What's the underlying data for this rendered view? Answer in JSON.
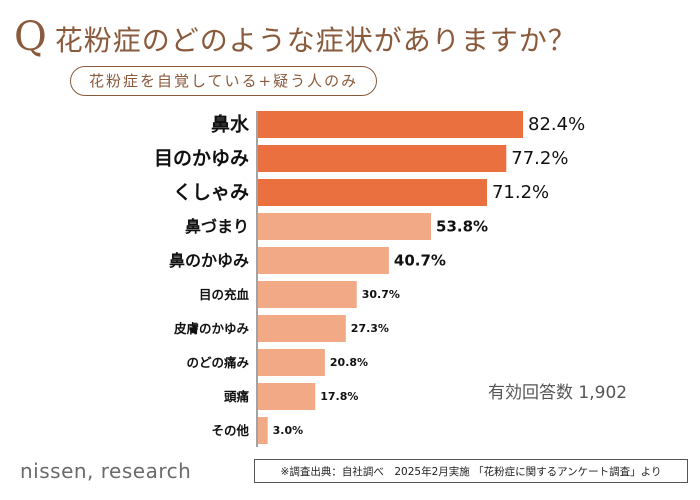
{
  "title": {
    "q_mark": "Q",
    "question": "花粉症のどのような症状がありますか？",
    "subtitle": "花粉症を自覚している+疑う人のみ"
  },
  "chart_data": {
    "type": "bar",
    "orientation": "horizontal",
    "categories": [
      "鼻水",
      "目のかゆみ",
      "くしゃみ",
      "鼻づまり",
      "鼻のかゆみ",
      "目の充血",
      "皮膚のかゆみ",
      "のどの痛み",
      "頭痛",
      "その他"
    ],
    "values": [
      82.4,
      77.2,
      71.2,
      53.8,
      40.7,
      30.7,
      27.3,
      20.8,
      17.8,
      3.0
    ],
    "value_labels": [
      "82.4%",
      "77.2%",
      "71.2%",
      "53.8%",
      "40.7%",
      "30.7%",
      "27.3%",
      "20.8%",
      "17.8%",
      "3.0%"
    ],
    "colors": {
      "top": "#eb7040",
      "rest": "#f2a985",
      "axis": "#666666",
      "label": "#111111"
    },
    "highlight_top_n": 3,
    "xlim": [
      0,
      100
    ],
    "grid": false
  },
  "annotations": {
    "response_count": "有効回答数 1,902",
    "source": "※調査出典：自社調べ　2025年2月実施 「花粉症に関するアンケート調査」より",
    "logo": "nissen, research"
  }
}
